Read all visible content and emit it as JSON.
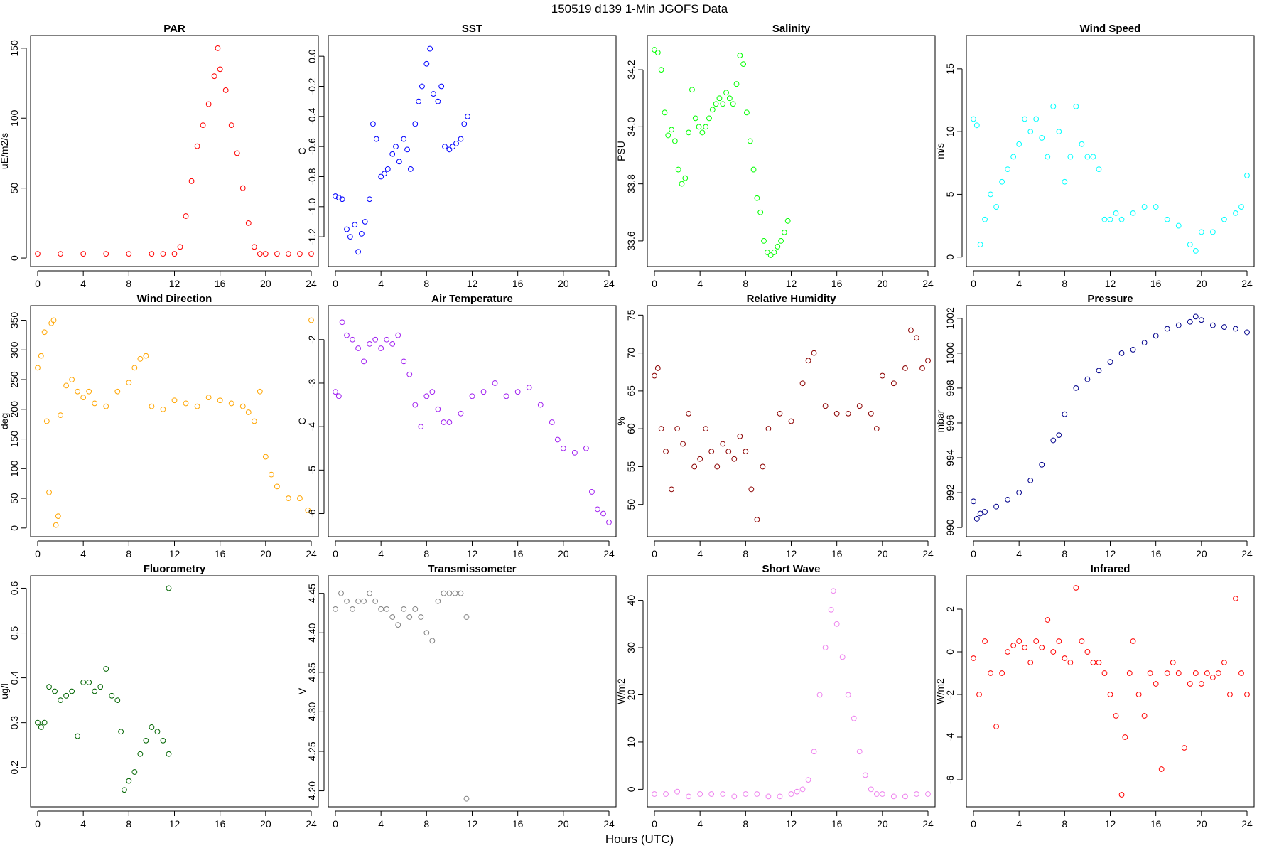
{
  "figure": {
    "title": "150519   d139   1-Min  JGOFS Data",
    "xlabel": "Hours (UTC)"
  },
  "chart_data": [
    {
      "type": "scatter",
      "title": "PAR",
      "ylabel": "uE/m2/s",
      "color": "#ff0000",
      "xlim": [
        0,
        24
      ],
      "ylim": [
        -2,
        155
      ],
      "xticks": [
        0,
        4,
        8,
        12,
        16,
        20,
        24
      ],
      "yticks": [
        0,
        50,
        100,
        150
      ],
      "x": [
        0,
        2,
        4,
        6,
        8,
        10,
        11,
        12,
        12.5,
        13,
        13.5,
        14,
        14.5,
        15,
        15.5,
        15.8,
        16,
        16.5,
        17,
        17.5,
        18,
        18.5,
        19,
        19.5,
        20,
        21,
        22,
        23,
        24
      ],
      "y": [
        3,
        3,
        3,
        3,
        3,
        3,
        3,
        3,
        8,
        30,
        55,
        80,
        95,
        110,
        130,
        150,
        135,
        120,
        95,
        75,
        50,
        25,
        8,
        3,
        3,
        3,
        3,
        3,
        3
      ]
    },
    {
      "type": "scatter",
      "title": "SST",
      "ylabel": "C",
      "color": "#0000ff",
      "xlim": [
        0,
        24
      ],
      "ylim": [
        -1.36,
        0.1
      ],
      "xticks": [
        0,
        4,
        8,
        12,
        16,
        20,
        24
      ],
      "yticks": [
        -1.2,
        -1.0,
        -0.8,
        -0.6,
        -0.4,
        -0.2,
        0.0
      ],
      "x": [
        0,
        0.3,
        0.6,
        1,
        1.3,
        1.7,
        2,
        2.3,
        2.6,
        3,
        3.3,
        3.6,
        4,
        4.3,
        4.6,
        5,
        5.3,
        5.6,
        6,
        6.3,
        6.6,
        7,
        7.3,
        7.6,
        8,
        8.3,
        8.6,
        9,
        9.3,
        9.6,
        10,
        10.3,
        10.6,
        11,
        11.3,
        11.6
      ],
      "y": [
        -0.93,
        -0.94,
        -0.95,
        -1.15,
        -1.2,
        -1.12,
        -1.3,
        -1.18,
        -1.1,
        -0.95,
        -0.45,
        -0.55,
        -0.8,
        -0.78,
        -0.75,
        -0.65,
        -0.6,
        -0.7,
        -0.55,
        -0.62,
        -0.75,
        -0.45,
        -0.3,
        -0.2,
        -0.05,
        0.05,
        -0.25,
        -0.3,
        -0.2,
        -0.6,
        -0.62,
        -0.6,
        -0.58,
        -0.55,
        -0.45,
        -0.4
      ]
    },
    {
      "type": "scatter",
      "title": "Salinity",
      "ylabel": "PSU",
      "color": "#00ff00",
      "xlim": [
        0,
        24
      ],
      "ylim": [
        33.53,
        34.3
      ],
      "xticks": [
        0,
        4,
        8,
        12,
        16,
        20,
        24
      ],
      "yticks": [
        33.6,
        33.8,
        34.0,
        34.2
      ],
      "x": [
        0,
        0.3,
        0.6,
        0.9,
        1.2,
        1.5,
        1.8,
        2.1,
        2.4,
        2.7,
        3,
        3.3,
        3.6,
        3.9,
        4.2,
        4.5,
        4.8,
        5.1,
        5.4,
        5.7,
        6,
        6.3,
        6.6,
        6.9,
        7.2,
        7.5,
        7.8,
        8.1,
        8.4,
        8.7,
        9,
        9.3,
        9.6,
        9.9,
        10.2,
        10.5,
        10.8,
        11.1,
        11.4,
        11.7
      ],
      "y": [
        34.27,
        34.26,
        34.2,
        34.05,
        33.97,
        33.99,
        33.95,
        33.85,
        33.8,
        33.82,
        33.98,
        34.13,
        34.03,
        34.0,
        33.98,
        34.0,
        34.03,
        34.06,
        34.08,
        34.1,
        34.08,
        34.12,
        34.1,
        34.08,
        34.15,
        34.25,
        34.22,
        34.05,
        33.95,
        33.85,
        33.75,
        33.7,
        33.6,
        33.56,
        33.55,
        33.56,
        33.58,
        33.6,
        33.63,
        33.67
      ]
    },
    {
      "type": "scatter",
      "title": "Wind Speed",
      "ylabel": "m/s",
      "color": "#00ffff",
      "xlim": [
        0,
        24
      ],
      "ylim": [
        -0.3,
        17.2
      ],
      "xticks": [
        0,
        4,
        8,
        12,
        16,
        20,
        24
      ],
      "yticks": [
        0,
        5,
        10,
        15
      ],
      "x": [
        0,
        0.3,
        0.6,
        1,
        1.5,
        2,
        2.5,
        3,
        3.5,
        4,
        4.5,
        5,
        5.5,
        6,
        6.5,
        7,
        7.5,
        8,
        8.5,
        9,
        9.5,
        10,
        10.5,
        11,
        11.5,
        12,
        12.5,
        13,
        14,
        15,
        16,
        17,
        18,
        19,
        19.5,
        20,
        21,
        22,
        23,
        23.5,
        24
      ],
      "y": [
        11,
        10.5,
        1,
        3,
        5,
        4,
        6,
        7,
        8,
        9,
        11,
        10,
        11,
        9.5,
        8,
        12,
        10,
        6,
        8,
        12,
        9,
        8,
        8,
        7,
        3,
        3,
        3.5,
        3,
        3.5,
        4,
        4,
        3,
        2.5,
        1,
        0.5,
        2,
        2,
        3,
        3.5,
        4,
        6.5
      ]
    },
    {
      "type": "scatter",
      "title": "Wind Direction",
      "ylabel": "deg",
      "color": "#ffa500",
      "xlim": [
        0,
        24
      ],
      "ylim": [
        -5,
        365
      ],
      "xticks": [
        0,
        4,
        8,
        12,
        16,
        20,
        24
      ],
      "yticks": [
        0,
        50,
        100,
        150,
        200,
        250,
        300,
        350
      ],
      "x": [
        0,
        0.3,
        0.6,
        0.8,
        1,
        1.2,
        1.4,
        1.6,
        1.8,
        2,
        2.5,
        3,
        3.5,
        4,
        4.5,
        5,
        6,
        7,
        8,
        8.5,
        9,
        9.5,
        10,
        11,
        12,
        13,
        14,
        15,
        16,
        17,
        18,
        18.5,
        19,
        19.5,
        20,
        20.5,
        21,
        22,
        23,
        23.7,
        24
      ],
      "y": [
        270,
        290,
        330,
        180,
        60,
        345,
        350,
        5,
        20,
        190,
        240,
        250,
        230,
        220,
        230,
        210,
        205,
        230,
        245,
        270,
        285,
        290,
        205,
        200,
        215,
        210,
        205,
        220,
        215,
        210,
        205,
        195,
        180,
        230,
        120,
        90,
        70,
        50,
        50,
        30,
        350
      ]
    },
    {
      "type": "scatter",
      "title": "Air Temperature",
      "ylabel": "C",
      "color": "#a020f0",
      "xlim": [
        0,
        24
      ],
      "ylim": [
        -6.4,
        -1.35
      ],
      "xticks": [
        0,
        4,
        8,
        12,
        16,
        20,
        24
      ],
      "yticks": [
        -6,
        -5,
        -4,
        -3,
        -2
      ],
      "x": [
        0,
        0.3,
        0.6,
        1,
        1.5,
        2,
        2.5,
        3,
        3.5,
        4,
        4.5,
        5,
        5.5,
        6,
        6.5,
        7,
        7.5,
        8,
        8.5,
        9,
        9.5,
        10,
        11,
        12,
        13,
        14,
        15,
        16,
        17,
        18,
        19,
        19.5,
        20,
        21,
        22,
        22.5,
        23,
        23.5,
        24
      ],
      "y": [
        -3.2,
        -3.3,
        -1.6,
        -1.9,
        -2.0,
        -2.2,
        -2.5,
        -2.1,
        -2.0,
        -2.2,
        -2.0,
        -2.1,
        -1.9,
        -2.5,
        -2.8,
        -3.5,
        -4.0,
        -3.3,
        -3.2,
        -3.6,
        -3.9,
        -3.9,
        -3.7,
        -3.3,
        -3.2,
        -3.0,
        -3.3,
        -3.2,
        -3.1,
        -3.5,
        -3.9,
        -4.3,
        -4.5,
        -4.6,
        -4.5,
        -5.5,
        -5.9,
        -6.0,
        -6.2
      ]
    },
    {
      "type": "scatter",
      "title": "Relative Humidity",
      "ylabel": "%",
      "color": "#8b0000",
      "xlim": [
        0,
        24
      ],
      "ylim": [
        46.5,
        75.5
      ],
      "xticks": [
        0,
        4,
        8,
        12,
        16,
        20,
        24
      ],
      "yticks": [
        50,
        55,
        60,
        65,
        70,
        75
      ],
      "x": [
        0,
        0.3,
        0.6,
        1,
        1.5,
        2,
        2.5,
        3,
        3.5,
        4,
        4.5,
        5,
        5.5,
        6,
        6.5,
        7,
        7.5,
        8,
        8.5,
        9,
        9.5,
        10,
        11,
        12,
        13,
        13.5,
        14,
        15,
        16,
        17,
        18,
        19,
        19.5,
        20,
        21,
        22,
        22.5,
        23,
        23.5,
        24
      ],
      "y": [
        67,
        68,
        60,
        57,
        52,
        60,
        58,
        62,
        55,
        56,
        60,
        57,
        55,
        58,
        57,
        56,
        59,
        57,
        52,
        48,
        55,
        60,
        62,
        61,
        66,
        69,
        70,
        63,
        62,
        62,
        63,
        62,
        60,
        67,
        66,
        68,
        73,
        72,
        68,
        69
      ]
    },
    {
      "type": "scatter",
      "title": "Pressure",
      "ylabel": "mbar",
      "color": "#00008b",
      "xlim": [
        0,
        24
      ],
      "ylim": [
        989.8,
        1002.4
      ],
      "xticks": [
        0,
        4,
        8,
        12,
        16,
        20,
        24
      ],
      "yticks": [
        990,
        992,
        994,
        996,
        998,
        1000,
        1002
      ],
      "x": [
        0,
        0.3,
        0.6,
        1,
        2,
        3,
        4,
        5,
        6,
        7,
        7.5,
        8,
        9,
        10,
        11,
        12,
        13,
        14,
        15,
        16,
        17,
        18,
        19,
        19.5,
        20,
        21,
        22,
        23,
        24
      ],
      "y": [
        991.5,
        990.5,
        990.8,
        990.9,
        991.2,
        991.6,
        992.0,
        992.7,
        993.6,
        995.0,
        995.3,
        996.5,
        998.0,
        998.5,
        999.0,
        999.5,
        1000.0,
        1000.2,
        1000.6,
        1001.0,
        1001.4,
        1001.6,
        1001.8,
        1002.1,
        1001.9,
        1001.6,
        1001.5,
        1001.4,
        1001.2
      ]
    },
    {
      "type": "scatter",
      "title": "Fluorometry",
      "ylabel": "ug/l",
      "color": "#006400",
      "xlim": [
        0,
        24
      ],
      "ylim": [
        0.125,
        0.615
      ],
      "xticks": [
        0,
        4,
        8,
        12,
        16,
        20,
        24
      ],
      "yticks": [
        0.2,
        0.3,
        0.4,
        0.5,
        0.6
      ],
      "x": [
        0,
        0.3,
        0.6,
        1,
        1.5,
        2,
        2.5,
        3,
        3.5,
        4,
        4.5,
        5,
        5.5,
        6,
        6.5,
        7,
        7.3,
        7.6,
        8,
        8.5,
        9,
        9.5,
        10,
        10.5,
        11,
        11.5,
        11.5
      ],
      "y": [
        0.3,
        0.29,
        0.3,
        0.38,
        0.37,
        0.35,
        0.36,
        0.37,
        0.27,
        0.39,
        0.39,
        0.37,
        0.38,
        0.42,
        0.36,
        0.35,
        0.28,
        0.15,
        0.17,
        0.19,
        0.23,
        0.26,
        0.29,
        0.28,
        0.26,
        0.23,
        0.6
      ]
    },
    {
      "type": "scatter",
      "title": "Transmissometer",
      "ylabel": "V",
      "color": "#808080",
      "xlim": [
        0,
        24
      ],
      "ylim": [
        4.187,
        4.465
      ],
      "xticks": [
        0,
        4,
        8,
        12,
        16,
        20,
        24
      ],
      "yticks": [
        4.2,
        4.25,
        4.3,
        4.35,
        4.4,
        4.45
      ],
      "x": [
        0,
        0.5,
        1,
        1.5,
        2,
        2.5,
        3,
        3.5,
        4,
        4.5,
        5,
        5.5,
        6,
        6.5,
        7,
        7.5,
        8,
        8.5,
        9,
        9.5,
        10,
        10.5,
        11,
        11.5,
        11.5
      ],
      "y": [
        4.43,
        4.45,
        4.44,
        4.43,
        4.44,
        4.44,
        4.45,
        4.44,
        4.43,
        4.43,
        4.42,
        4.41,
        4.43,
        4.42,
        4.43,
        4.42,
        4.4,
        4.39,
        4.44,
        4.45,
        4.45,
        4.45,
        4.45,
        4.42,
        4.19
      ]
    },
    {
      "type": "scatter",
      "title": "Short Wave",
      "ylabel": "W/m2",
      "color": "#ee82ee",
      "xlim": [
        0,
        24
      ],
      "ylim": [
        -2.5,
        44
      ],
      "xticks": [
        0,
        4,
        8,
        12,
        16,
        20,
        24
      ],
      "yticks": [
        0,
        10,
        20,
        30,
        40
      ],
      "x": [
        0,
        1,
        2,
        3,
        4,
        5,
        6,
        7,
        8,
        9,
        10,
        11,
        12,
        12.5,
        13,
        13.5,
        14,
        14.5,
        15,
        15.5,
        15.7,
        16,
        16.5,
        17,
        17.5,
        18,
        18.5,
        19,
        19.5,
        20,
        21,
        22,
        23,
        24
      ],
      "y": [
        -1,
        -1,
        -0.5,
        -1.5,
        -1,
        -1,
        -1,
        -1.5,
        -1,
        -1,
        -1.5,
        -1.5,
        -1,
        -0.5,
        0,
        2,
        8,
        20,
        30,
        38,
        42,
        35,
        28,
        20,
        15,
        8,
        3,
        0,
        -1,
        -1,
        -1.5,
        -1.5,
        -1,
        -1
      ]
    },
    {
      "type": "scatter",
      "title": "Infrared",
      "ylabel": "W/m2",
      "color": "#ff0000",
      "xlim": [
        0,
        24
      ],
      "ylim": [
        -7,
        3.3
      ],
      "xticks": [
        0,
        4,
        8,
        12,
        16,
        20,
        24
      ],
      "yticks": [
        -6,
        -4,
        -2,
        0,
        2
      ],
      "x": [
        0,
        0.5,
        1,
        1.5,
        2,
        2.5,
        3,
        3.5,
        4,
        4.5,
        5,
        5.5,
        6,
        6.5,
        7,
        7.5,
        8,
        8.5,
        9,
        9.5,
        10,
        10.5,
        11,
        11.5,
        12,
        12.5,
        13,
        13.3,
        13.7,
        14,
        14.5,
        15,
        15.5,
        16,
        16.5,
        17,
        17.5,
        18,
        18.5,
        19,
        19.5,
        20,
        20.5,
        21,
        21.5,
        22,
        22.5,
        23,
        23.5,
        24
      ],
      "y": [
        -0.3,
        -2,
        0.5,
        -1,
        -3.5,
        -1,
        0,
        0.3,
        0.5,
        0.2,
        -0.5,
        0.5,
        0.2,
        1.5,
        0,
        0.5,
        -0.3,
        -0.5,
        3,
        0.5,
        0,
        -0.5,
        -0.5,
        -1,
        -2,
        -3,
        -6.7,
        -4,
        -1,
        0.5,
        -2,
        -3,
        -1,
        -1.5,
        -5.5,
        -1,
        -0.5,
        -1,
        -4.5,
        -1.5,
        -1,
        -1.5,
        -1,
        -1.2,
        -1,
        -0.5,
        -2,
        2.5,
        -1,
        -2
      ]
    }
  ]
}
